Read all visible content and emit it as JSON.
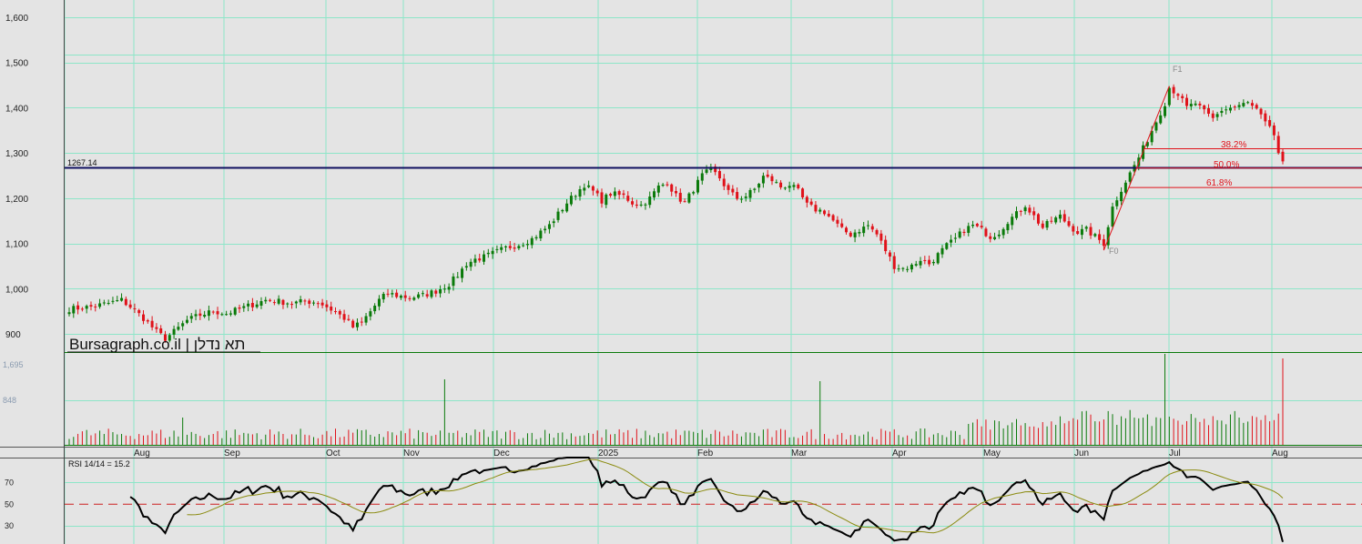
{
  "watermark": "Bursagraph.co.il | תא נדלן",
  "colors": {
    "background": "#e4e4e4",
    "grid": "#8de6c8",
    "up": "#0a7a0a",
    "down": "#e0121a",
    "resistance_line": "#101060",
    "rsi_line": "#000000",
    "rsi_signal": "#8b8b10",
    "rsi_mid": "#cc2020",
    "volume_base": "#0a7a0a"
  },
  "chart_data": [
    {
      "type": "candlestick",
      "name": "price",
      "ylim": [
        860,
        1630
      ],
      "yticks": [
        "1,600",
        "1,500",
        "1,400",
        "1,300",
        "1,200",
        "1,100",
        "1,000",
        "900"
      ],
      "ytick_values": [
        1600,
        1500,
        1400,
        1300,
        1200,
        1100,
        1000,
        900
      ],
      "xticks": [
        "Aug",
        "Sep",
        "Oct",
        "Nov",
        "Dec",
        "2025",
        "Feb",
        "Mar",
        "Apr",
        "May",
        "Jun",
        "Jul",
        "Aug"
      ],
      "bars": 279,
      "close_anchors": [
        [
          0,
          955
        ],
        [
          5,
          960
        ],
        [
          9,
          968
        ],
        [
          12,
          975
        ],
        [
          14,
          960
        ],
        [
          17,
          935
        ],
        [
          20,
          905
        ],
        [
          22,
          890
        ],
        [
          24,
          905
        ],
        [
          27,
          930
        ],
        [
          30,
          942
        ],
        [
          33,
          950
        ],
        [
          36,
          945
        ],
        [
          39,
          955
        ],
        [
          42,
          965
        ],
        [
          45,
          975
        ],
        [
          48,
          972
        ],
        [
          51,
          968
        ],
        [
          54,
          972
        ],
        [
          57,
          970
        ],
        [
          59,
          960
        ],
        [
          61,
          948
        ],
        [
          63,
          935
        ],
        [
          65,
          915
        ],
        [
          67,
          925
        ],
        [
          69,
          950
        ],
        [
          71,
          975
        ],
        [
          73,
          990
        ],
        [
          75,
          985
        ],
        [
          78,
          980
        ],
        [
          81,
          985
        ],
        [
          84,
          995
        ],
        [
          87,
          1010
        ],
        [
          89,
          1030
        ],
        [
          91,
          1055
        ],
        [
          93,
          1065
        ],
        [
          95,
          1070
        ],
        [
          97,
          1078
        ],
        [
          100,
          1090
        ],
        [
          103,
          1098
        ],
        [
          106,
          1110
        ],
        [
          108,
          1125
        ],
        [
          110,
          1140
        ],
        [
          112,
          1165
        ],
        [
          114,
          1190
        ],
        [
          116,
          1210
        ],
        [
          118,
          1230
        ],
        [
          120,
          1215
        ],
        [
          122,
          1195
        ],
        [
          124,
          1210
        ],
        [
          127,
          1205
        ],
        [
          129,
          1190
        ],
        [
          131,
          1185
        ],
        [
          133,
          1200
        ],
        [
          135,
          1225
        ],
        [
          137,
          1235
        ],
        [
          139,
          1205
        ],
        [
          141,
          1190
        ],
        [
          143,
          1220
        ],
        [
          145,
          1250
        ],
        [
          147,
          1263
        ],
        [
          149,
          1245
        ],
        [
          151,
          1215
        ],
        [
          153,
          1200
        ],
        [
          155,
          1205
        ],
        [
          157,
          1220
        ],
        [
          159,
          1248
        ],
        [
          161,
          1240
        ],
        [
          163,
          1225
        ],
        [
          165,
          1230
        ],
        [
          167,
          1215
        ],
        [
          169,
          1185
        ],
        [
          171,
          1175
        ],
        [
          173,
          1170
        ],
        [
          175,
          1150
        ],
        [
          177,
          1130
        ],
        [
          179,
          1120
        ],
        [
          181,
          1130
        ],
        [
          183,
          1140
        ],
        [
          185,
          1120
        ],
        [
          187,
          1085
        ],
        [
          189,
          1050
        ],
        [
          191,
          1045
        ],
        [
          193,
          1050
        ],
        [
          195,
          1065
        ],
        [
          197,
          1055
        ],
        [
          199,
          1075
        ],
        [
          201,
          1095
        ],
        [
          203,
          1110
        ],
        [
          205,
          1130
        ],
        [
          207,
          1140
        ],
        [
          209,
          1130
        ],
        [
          211,
          1115
        ],
        [
          213,
          1125
        ],
        [
          215,
          1150
        ],
        [
          217,
          1165
        ],
        [
          219,
          1185
        ],
        [
          221,
          1160
        ],
        [
          223,
          1135
        ],
        [
          225,
          1150
        ],
        [
          227,
          1160
        ],
        [
          229,
          1140
        ],
        [
          231,
          1125
        ],
        [
          233,
          1130
        ],
        [
          235,
          1115
        ],
        [
          237,
          1100
        ],
        [
          239,
          1180
        ],
        [
          241,
          1220
        ],
        [
          243,
          1255
        ],
        [
          245,
          1290
        ],
        [
          247,
          1330
        ],
        [
          249,
          1370
        ],
        [
          251,
          1410
        ],
        [
          252,
          1445
        ],
        [
          254,
          1430
        ],
        [
          256,
          1400
        ],
        [
          258,
          1410
        ],
        [
          260,
          1390
        ],
        [
          262,
          1375
        ],
        [
          264,
          1395
        ],
        [
          266,
          1400
        ],
        [
          268,
          1405
        ],
        [
          270,
          1410
        ],
        [
          272,
          1395
        ],
        [
          274,
          1365
        ],
        [
          276,
          1340
        ],
        [
          277,
          1300
        ],
        [
          278,
          1275
        ]
      ],
      "resistance": {
        "value": 1267.14,
        "label": "1267.14"
      },
      "fibonacci": {
        "levels": [
          "38.2%",
          "50.0%",
          "61.8%"
        ],
        "start_label": "F0",
        "end_label": "F1",
        "low": 1085,
        "high": 1448
      }
    },
    {
      "type": "bar",
      "name": "volume",
      "yticks": [
        "1,695",
        "848"
      ],
      "ytick_values": [
        1695,
        848
      ]
    },
    {
      "type": "line",
      "name": "rsi",
      "title": "RSI 14/14 = 15.2",
      "yticks": [
        "70",
        "50",
        "30"
      ],
      "ytick_values": [
        70,
        50,
        30
      ],
      "ylim": [
        15,
        93
      ],
      "last_value": 15.2
    }
  ]
}
